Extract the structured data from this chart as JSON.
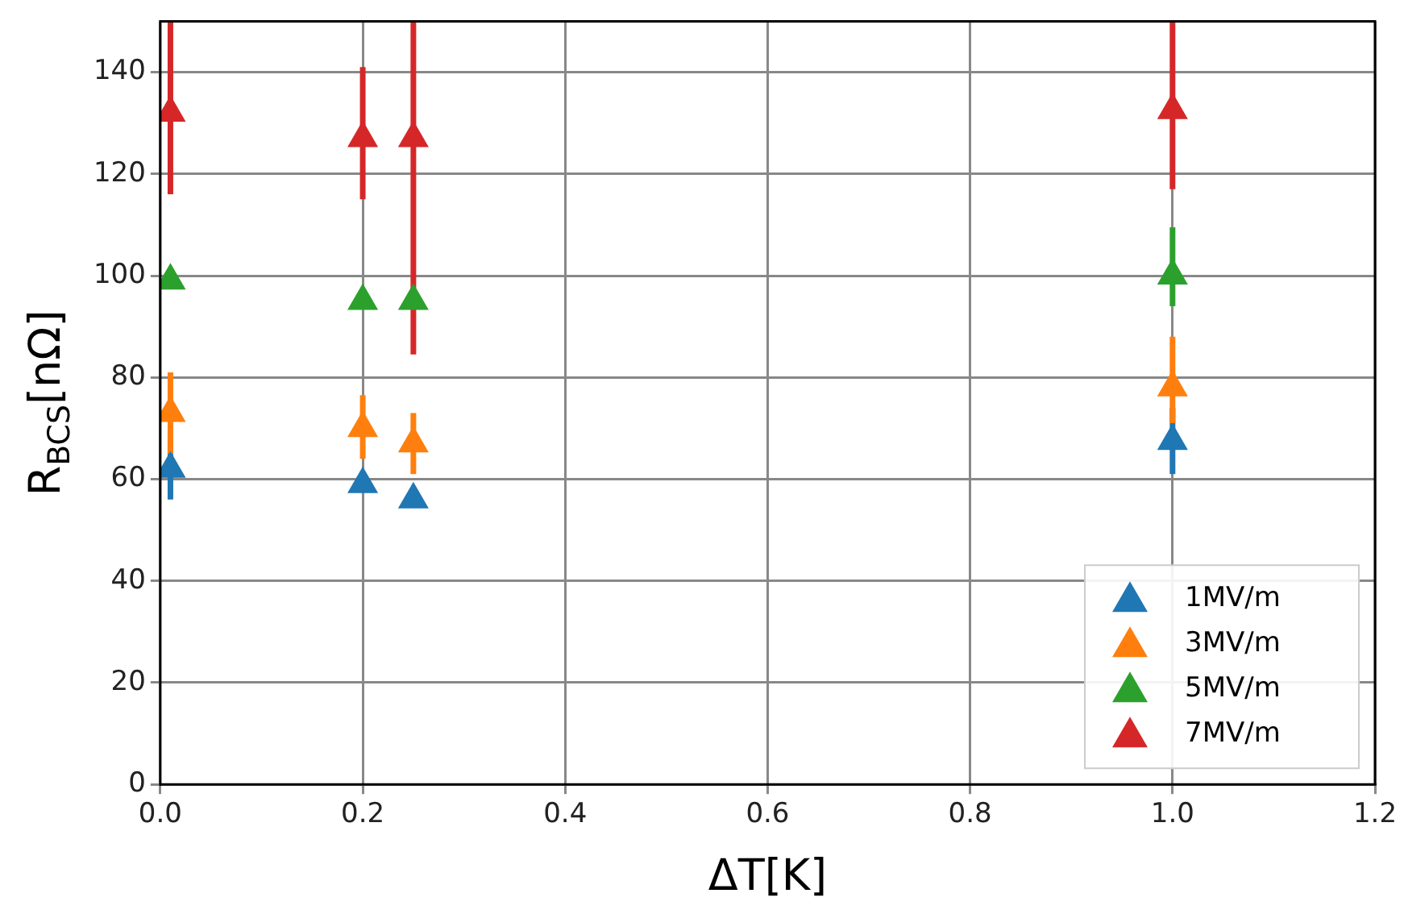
{
  "chart_data": {
    "type": "scatter",
    "xlabel": "ΔT[K]",
    "ylabel": "R$_{BCS}$[nΩ]",
    "xlim": [
      0,
      1.2
    ],
    "xticks": [
      {
        "value": 0,
        "label": "0.0"
      },
      0.2,
      0.4,
      0.6,
      0.8,
      {
        "value": 1,
        "label": "1.0"
      },
      1.2
    ],
    "ylim": [
      0,
      150
    ],
    "yticks": [
      0,
      20,
      40,
      60,
      80,
      100,
      120,
      140
    ],
    "grid": true,
    "legend": "bottom right",
    "marker": "triangle",
    "x": [
      0.01,
      0.2,
      0.25,
      1.0
    ],
    "series": [
      {
        "name": "1MV/m",
        "color": "#1f77b4",
        "values": [
          62,
          59,
          56,
          67.5
        ],
        "errors": [
          [
            56,
            68
          ],
          null,
          null,
          [
            61,
            74
          ]
        ]
      },
      {
        "name": "3MV/m",
        "color": "#ff7f0e",
        "values": [
          73,
          70,
          67,
          78
        ],
        "errors": [
          [
            65,
            81
          ],
          [
            64,
            76.5
          ],
          [
            61,
            73
          ],
          [
            71,
            88
          ]
        ]
      },
      {
        "name": "5MV/m",
        "color": "#2ca02c",
        "values": [
          99,
          95,
          95,
          100
        ],
        "errors": [
          null,
          null,
          null,
          [
            94,
            109.5
          ]
        ]
      },
      {
        "name": "7MV/m",
        "color": "#d62728",
        "values": [
          132,
          127,
          127,
          132.5
        ],
        "errors": [
          [
            116,
            150
          ],
          [
            115,
            141
          ],
          [
            84.5,
            150
          ],
          [
            117,
            150
          ]
        ]
      }
    ]
  }
}
